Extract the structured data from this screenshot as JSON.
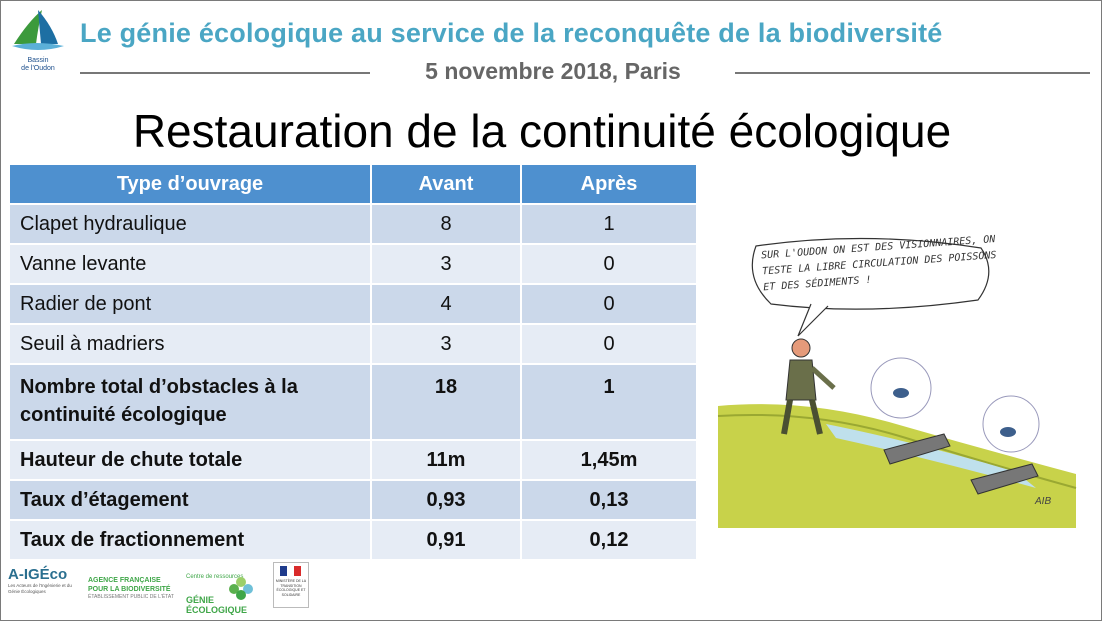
{
  "header": {
    "logo_text": "Bassin de l'Oudon",
    "title": "Le génie écologique au service de la reconquête de la biodiversité",
    "date": "5 novembre 2018, Paris"
  },
  "slide": {
    "title": "Restauration de la continuité écologique"
  },
  "table": {
    "headers": [
      "Type d’ouvrage",
      "Avant",
      "Après"
    ],
    "rows": [
      {
        "label": "Clapet hydraulique",
        "avant": "8",
        "apres": "1"
      },
      {
        "label": "Vanne levante",
        "avant": "3",
        "apres": "0"
      },
      {
        "label": "Radier de pont",
        "avant": "4",
        "apres": "0"
      },
      {
        "label": "Seuil à madriers",
        "avant": "3",
        "apres": "0"
      },
      {
        "label": "Nombre total d’obstacles à la continuité écologique",
        "avant": "18",
        "apres": "1"
      },
      {
        "label": "Hauteur de chute totale",
        "avant": "11m",
        "apres": "1,45m"
      },
      {
        "label": "Taux d’étagement",
        "avant": "0,93",
        "apres": "0,13"
      },
      {
        "label": "Taux de fractionnement",
        "avant": "0,91",
        "apres": "0,12"
      }
    ]
  },
  "cartoon": {
    "speech": "Sur l'Oudon on est des visionnaires, on teste la libre circulation des poissons et des sédiments !",
    "signature": "AIB"
  },
  "footer": {
    "aigeco_mark": "A-IGÉco",
    "aigeco_sub": "Les Acteurs de l'Ingénierie et du Génie Écologiques",
    "afb_line1": "AGENCE FRANÇAISE",
    "afb_line2": "POUR LA BIODIVERSITÉ",
    "afb_line3": "ÉTABLISSEMENT PUBLIC DE L'ÉTAT",
    "crge_line1": "Centre de ressources",
    "crge_line2": "GÉNIE ÉCOLOGIQUE",
    "ministry_text": "MINISTÈRE DE LA TRANSITION ÉCOLOGIQUE ET SOLIDAIRE"
  },
  "colors": {
    "header_title": "#4aa6c4",
    "table_header": "#4e90cf",
    "row_dark": "#cbd8ea",
    "row_light": "#e6ecf5"
  }
}
